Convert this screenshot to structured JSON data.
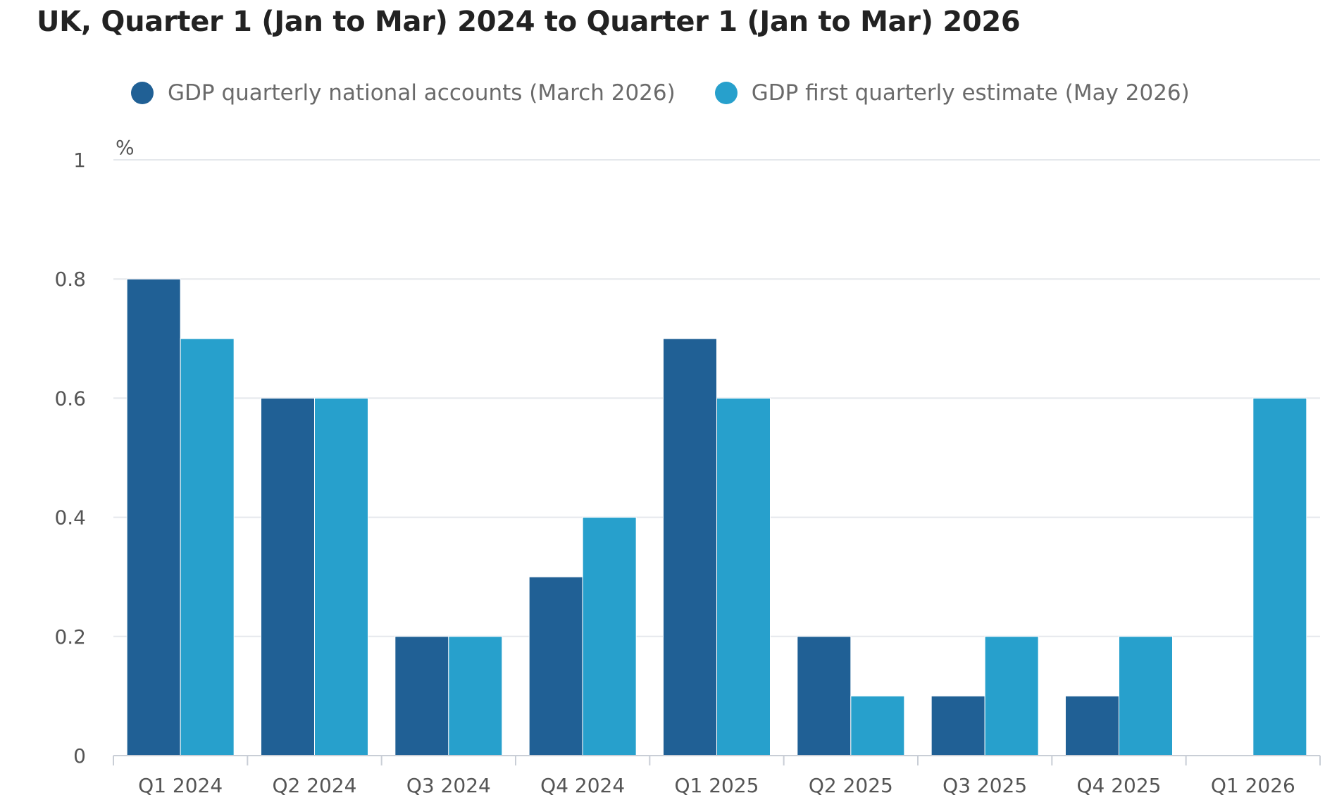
{
  "chart_data": {
    "type": "bar",
    "title": "UK, Quarter 1 (Jan to Mar) 2024 to Quarter 1 (Jan to Mar) 2026",
    "ylabel": "%",
    "xlabel": "",
    "ylim": [
      0,
      1
    ],
    "yticks": [
      "0",
      "0.2",
      "0.4",
      "0.6",
      "0.8",
      "1"
    ],
    "ytick_values": [
      0,
      0.2,
      0.4,
      0.6,
      0.8,
      1
    ],
    "grid": true,
    "legend_position": "top-left",
    "categories": [
      "Q1 2024",
      "Q2 2024",
      "Q3 2024",
      "Q4 2024",
      "Q1 2025",
      "Q2 2025",
      "Q3 2025",
      "Q4 2025",
      "Q1 2026"
    ],
    "series": [
      {
        "name": "GDP quarterly national accounts (March 2026)",
        "color": "#206095",
        "values": [
          0.8,
          0.6,
          0.2,
          0.3,
          0.7,
          0.2,
          0.1,
          0.1,
          null
        ]
      },
      {
        "name": "GDP first quarterly estimate (May 2026)",
        "color": "#27a0cc",
        "values": [
          0.7,
          0.6,
          0.2,
          0.4,
          0.6,
          0.1,
          0.2,
          0.2,
          0.6
        ]
      }
    ]
  },
  "colors": {
    "gridline": "#e5e8ec",
    "axis": "#c9ced6"
  }
}
